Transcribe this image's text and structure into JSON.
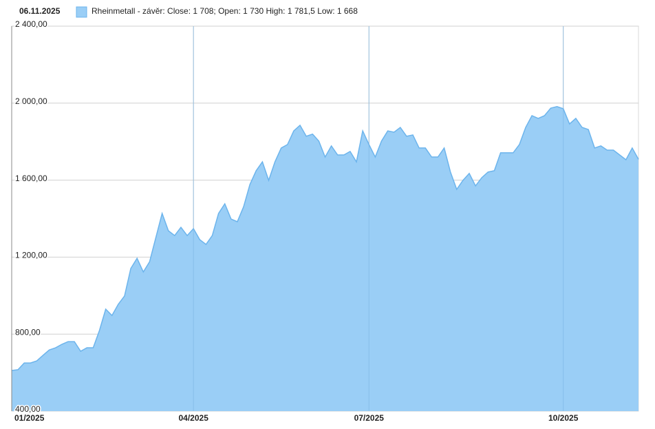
{
  "chart_data": {
    "type": "area",
    "date": "06.11.2025",
    "categories": [
      "01/2025",
      null,
      null,
      null,
      null,
      null,
      null,
      null,
      null,
      null,
      null,
      null,
      null,
      null,
      null,
      null,
      null,
      null,
      null,
      null,
      null,
      null,
      null,
      null,
      null,
      null,
      null,
      null,
      null,
      "04/2025",
      null,
      null,
      null,
      null,
      null,
      null,
      null,
      null,
      null,
      null,
      null,
      null,
      null,
      null,
      null,
      null,
      null,
      null,
      null,
      null,
      null,
      null,
      null,
      null,
      null,
      null,
      null,
      "07/2025",
      null,
      null,
      null,
      null,
      null,
      null,
      null,
      null,
      null,
      null,
      null,
      null,
      null,
      null,
      null,
      null,
      null,
      null,
      null,
      null,
      null,
      null,
      null,
      null,
      null,
      null,
      null,
      null,
      null,
      null,
      "10/2025",
      null,
      null,
      null,
      null,
      null,
      null,
      null,
      null,
      null,
      null,
      null,
      null
    ],
    "series": [
      {
        "name": "Rheinmetall - závěr: Close: 1 708; Open: 1 730 High: 1 781,5 Low: 1 668",
        "color": "#9acef6",
        "line_color": "#6cb4ec",
        "values": [
          611,
          615,
          650,
          650,
          661,
          690,
          718,
          729,
          747,
          761,
          761,
          711,
          729,
          729,
          819,
          930,
          897,
          955,
          998,
          1141,
          1194,
          1123,
          1176,
          1302,
          1427,
          1337,
          1312,
          1355,
          1312,
          1348,
          1291,
          1266,
          1312,
          1427,
          1477,
          1398,
          1384,
          1462,
          1577,
          1649,
          1695,
          1599,
          1695,
          1767,
          1785,
          1856,
          1885,
          1828,
          1839,
          1803,
          1720,
          1778,
          1731,
          1731,
          1749,
          1695,
          1856,
          1785,
          1720,
          1803,
          1856,
          1849,
          1874,
          1828,
          1835,
          1767,
          1767,
          1720,
          1720,
          1767,
          1642,
          1552,
          1599,
          1635,
          1570,
          1613,
          1642,
          1649,
          1742,
          1742,
          1742,
          1785,
          1874,
          1935,
          1921,
          1935,
          1974,
          1982,
          1971,
          1892,
          1921,
          1874,
          1863,
          1767,
          1778,
          1756,
          1756,
          1731,
          1706,
          1767,
          1708
        ]
      }
    ],
    "ylim": [
      400,
      2400
    ],
    "yticks": [
      {
        "value": 400,
        "label": "400,00"
      },
      {
        "value": 800,
        "label": "800,00"
      },
      {
        "value": 1200,
        "label": "1 200,00"
      },
      {
        "value": 1600,
        "label": "1 600,00"
      },
      {
        "value": 2000,
        "label": "2 000,00"
      },
      {
        "value": 2400,
        "label": "2 400,00"
      }
    ],
    "grid": true
  }
}
